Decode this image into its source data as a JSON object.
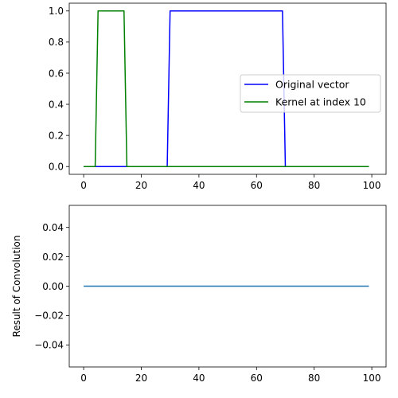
{
  "chart_data": [
    {
      "type": "line",
      "xlim": [
        -5,
        104.95
      ],
      "ylim": [
        -0.05,
        1.05
      ],
      "xticks": [
        0,
        20,
        40,
        60,
        80,
        100
      ],
      "yticks": [
        0.0,
        0.2,
        0.4,
        0.6,
        0.8,
        1.0
      ],
      "xtick_labels": [
        "0",
        "20",
        "40",
        "60",
        "80",
        "100"
      ],
      "ytick_labels": [
        "0.0",
        "0.2",
        "0.4",
        "0.6",
        "0.8",
        "1.0"
      ],
      "xlabel": "",
      "ylabel": "",
      "legend": {
        "position": "center-right"
      },
      "series": [
        {
          "name": "Original vector",
          "color": "#0000ff",
          "x": [
            0,
            29,
            30,
            69,
            70,
            99
          ],
          "y": [
            0,
            0,
            1,
            1,
            0,
            0
          ]
        },
        {
          "name": "Kernel at index 10",
          "color": "#008000",
          "x": [
            0,
            4,
            5,
            14,
            15,
            99
          ],
          "y": [
            0,
            0,
            1,
            1,
            0,
            0
          ]
        }
      ]
    },
    {
      "type": "line",
      "xlim": [
        -5,
        104.95
      ],
      "ylim": [
        -0.055,
        0.055
      ],
      "xticks": [
        0,
        20,
        40,
        60,
        80,
        100
      ],
      "yticks": [
        -0.04,
        -0.02,
        0.0,
        0.02,
        0.04
      ],
      "xtick_labels": [
        "0",
        "20",
        "40",
        "60",
        "80",
        "100"
      ],
      "ytick_labels": [
        "−0.04",
        "−0.02",
        "0.00",
        "0.02",
        "0.04"
      ],
      "xlabel": "",
      "ylabel": "Result of Convolution",
      "series": [
        {
          "color": "#1f77b4",
          "x": [
            0,
            99
          ],
          "y": [
            0,
            0
          ]
        }
      ]
    }
  ]
}
